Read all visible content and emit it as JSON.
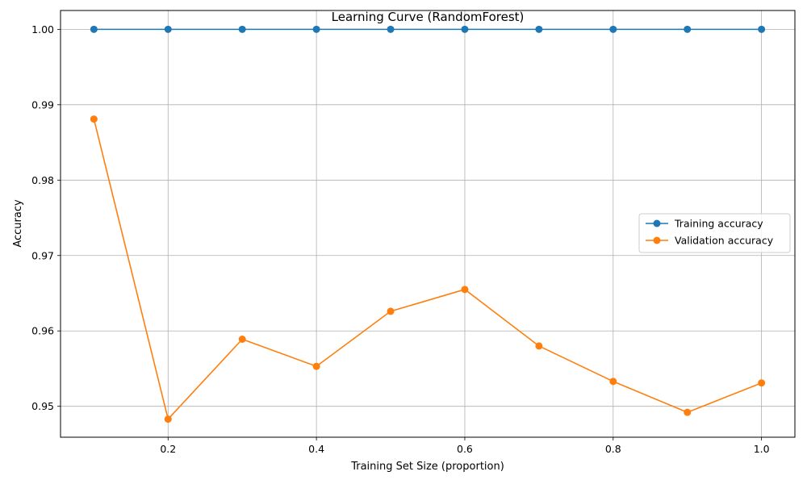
{
  "chart_data": {
    "type": "line",
    "title": "Learning Curve (RandomForest)",
    "xlabel": "Training Set Size (proportion)",
    "ylabel": "Accuracy",
    "x": [
      0.1,
      0.2,
      0.3,
      0.4,
      0.5,
      0.6,
      0.7,
      0.8,
      0.9,
      1.0
    ],
    "xlim": [
      0.055,
      1.045
    ],
    "ylim": [
      0.9459,
      1.0025
    ],
    "xticks": [
      "0.2",
      "0.4",
      "0.6",
      "0.8",
      "1.0"
    ],
    "xtick_values": [
      0.2,
      0.4,
      0.6,
      0.8,
      1.0
    ],
    "yticks": [
      "0.95",
      "0.96",
      "0.97",
      "0.98",
      "0.99",
      "1.00"
    ],
    "ytick_values": [
      0.95,
      0.96,
      0.97,
      0.98,
      0.99,
      1.0
    ],
    "grid": true,
    "legend_position": "center-right",
    "series": [
      {
        "name": "Training accuracy",
        "color": "#1f77b4",
        "marker": "circle",
        "values": [
          1.0,
          1.0,
          1.0,
          1.0,
          1.0,
          1.0,
          1.0,
          1.0,
          1.0,
          1.0
        ]
      },
      {
        "name": "Validation accuracy",
        "color": "#ff7f0e",
        "marker": "circle",
        "values": [
          0.9881,
          0.9483,
          0.9589,
          0.9553,
          0.9626,
          0.9655,
          0.958,
          0.9533,
          0.9492,
          0.9531
        ]
      }
    ]
  }
}
